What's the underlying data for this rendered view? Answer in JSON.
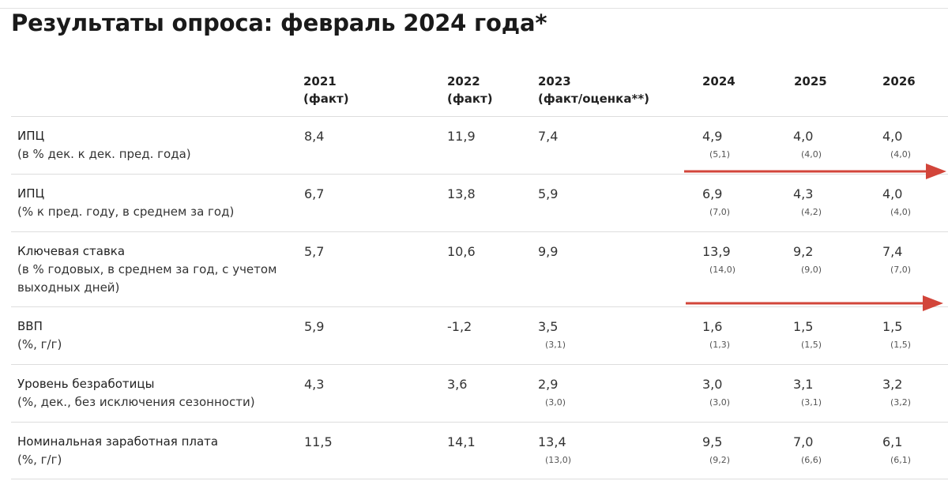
{
  "title": "Результаты опроса: февраль 2024 года*",
  "columns": [
    {
      "year": "2021",
      "note": "(факт)"
    },
    {
      "year": "2022",
      "note": "(факт)"
    },
    {
      "year": "2023",
      "note": "(факт/оценка**)"
    },
    {
      "year": "2024",
      "note": ""
    },
    {
      "year": "2025",
      "note": ""
    },
    {
      "year": "2026",
      "note": ""
    }
  ],
  "rows": [
    {
      "label": "ИПЦ",
      "sublabel": [
        "(в % дек. к дек. пред. года)"
      ],
      "values": [
        "8,4",
        "11,9",
        "7,4",
        "4,9",
        "4,0",
        "4,0"
      ],
      "previous": [
        "",
        "",
        "",
        "(5,1)",
        "(4,0)",
        "(4,0)"
      ]
    },
    {
      "label": "ИПЦ",
      "sublabel": [
        "(% к пред. году, в среднем за год)"
      ],
      "values": [
        "6,7",
        "13,8",
        "5,9",
        "6,9",
        "4,3",
        "4,0"
      ],
      "previous": [
        "",
        "",
        "",
        "(7,0)",
        "(4,2)",
        "(4,0)"
      ]
    },
    {
      "label": "Ключевая ставка",
      "sublabel": [
        "(в % годовых, в среднем за год, с учетом",
        "выходных дней)"
      ],
      "values": [
        "5,7",
        "10,6",
        "9,9",
        "13,9",
        "9,2",
        "7,4"
      ],
      "previous": [
        "",
        "",
        "",
        "(14,0)",
        "(9,0)",
        "(7,0)"
      ]
    },
    {
      "label": "ВВП",
      "sublabel": [
        "(%, г/г)"
      ],
      "values": [
        "5,9",
        "-1,2",
        "3,5",
        "1,6",
        "1,5",
        "1,5"
      ],
      "previous": [
        "",
        "",
        "(3,1)",
        "(1,3)",
        "(1,5)",
        "(1,5)"
      ]
    },
    {
      "label": "Уровень безработицы",
      "sublabel": [
        "(%, дек., без исключения сезонности)"
      ],
      "values": [
        "4,3",
        "3,6",
        "2,9",
        "3,0",
        "3,1",
        "3,2"
      ],
      "previous": [
        "",
        "",
        "(3,0)",
        "(3,0)",
        "(3,1)",
        "(3,2)"
      ]
    },
    {
      "label": "Номинальная заработная плата",
      "sublabel": [
        "(%, г/г)"
      ],
      "values": [
        "11,5",
        "14,1",
        "13,4",
        "9,5",
        "7,0",
        "6,1"
      ],
      "previous": [
        "",
        "",
        "(13,0)",
        "(9,2)",
        "(6,6)",
        "(6,1)"
      ]
    }
  ],
  "arrow_color": "#d2453a"
}
